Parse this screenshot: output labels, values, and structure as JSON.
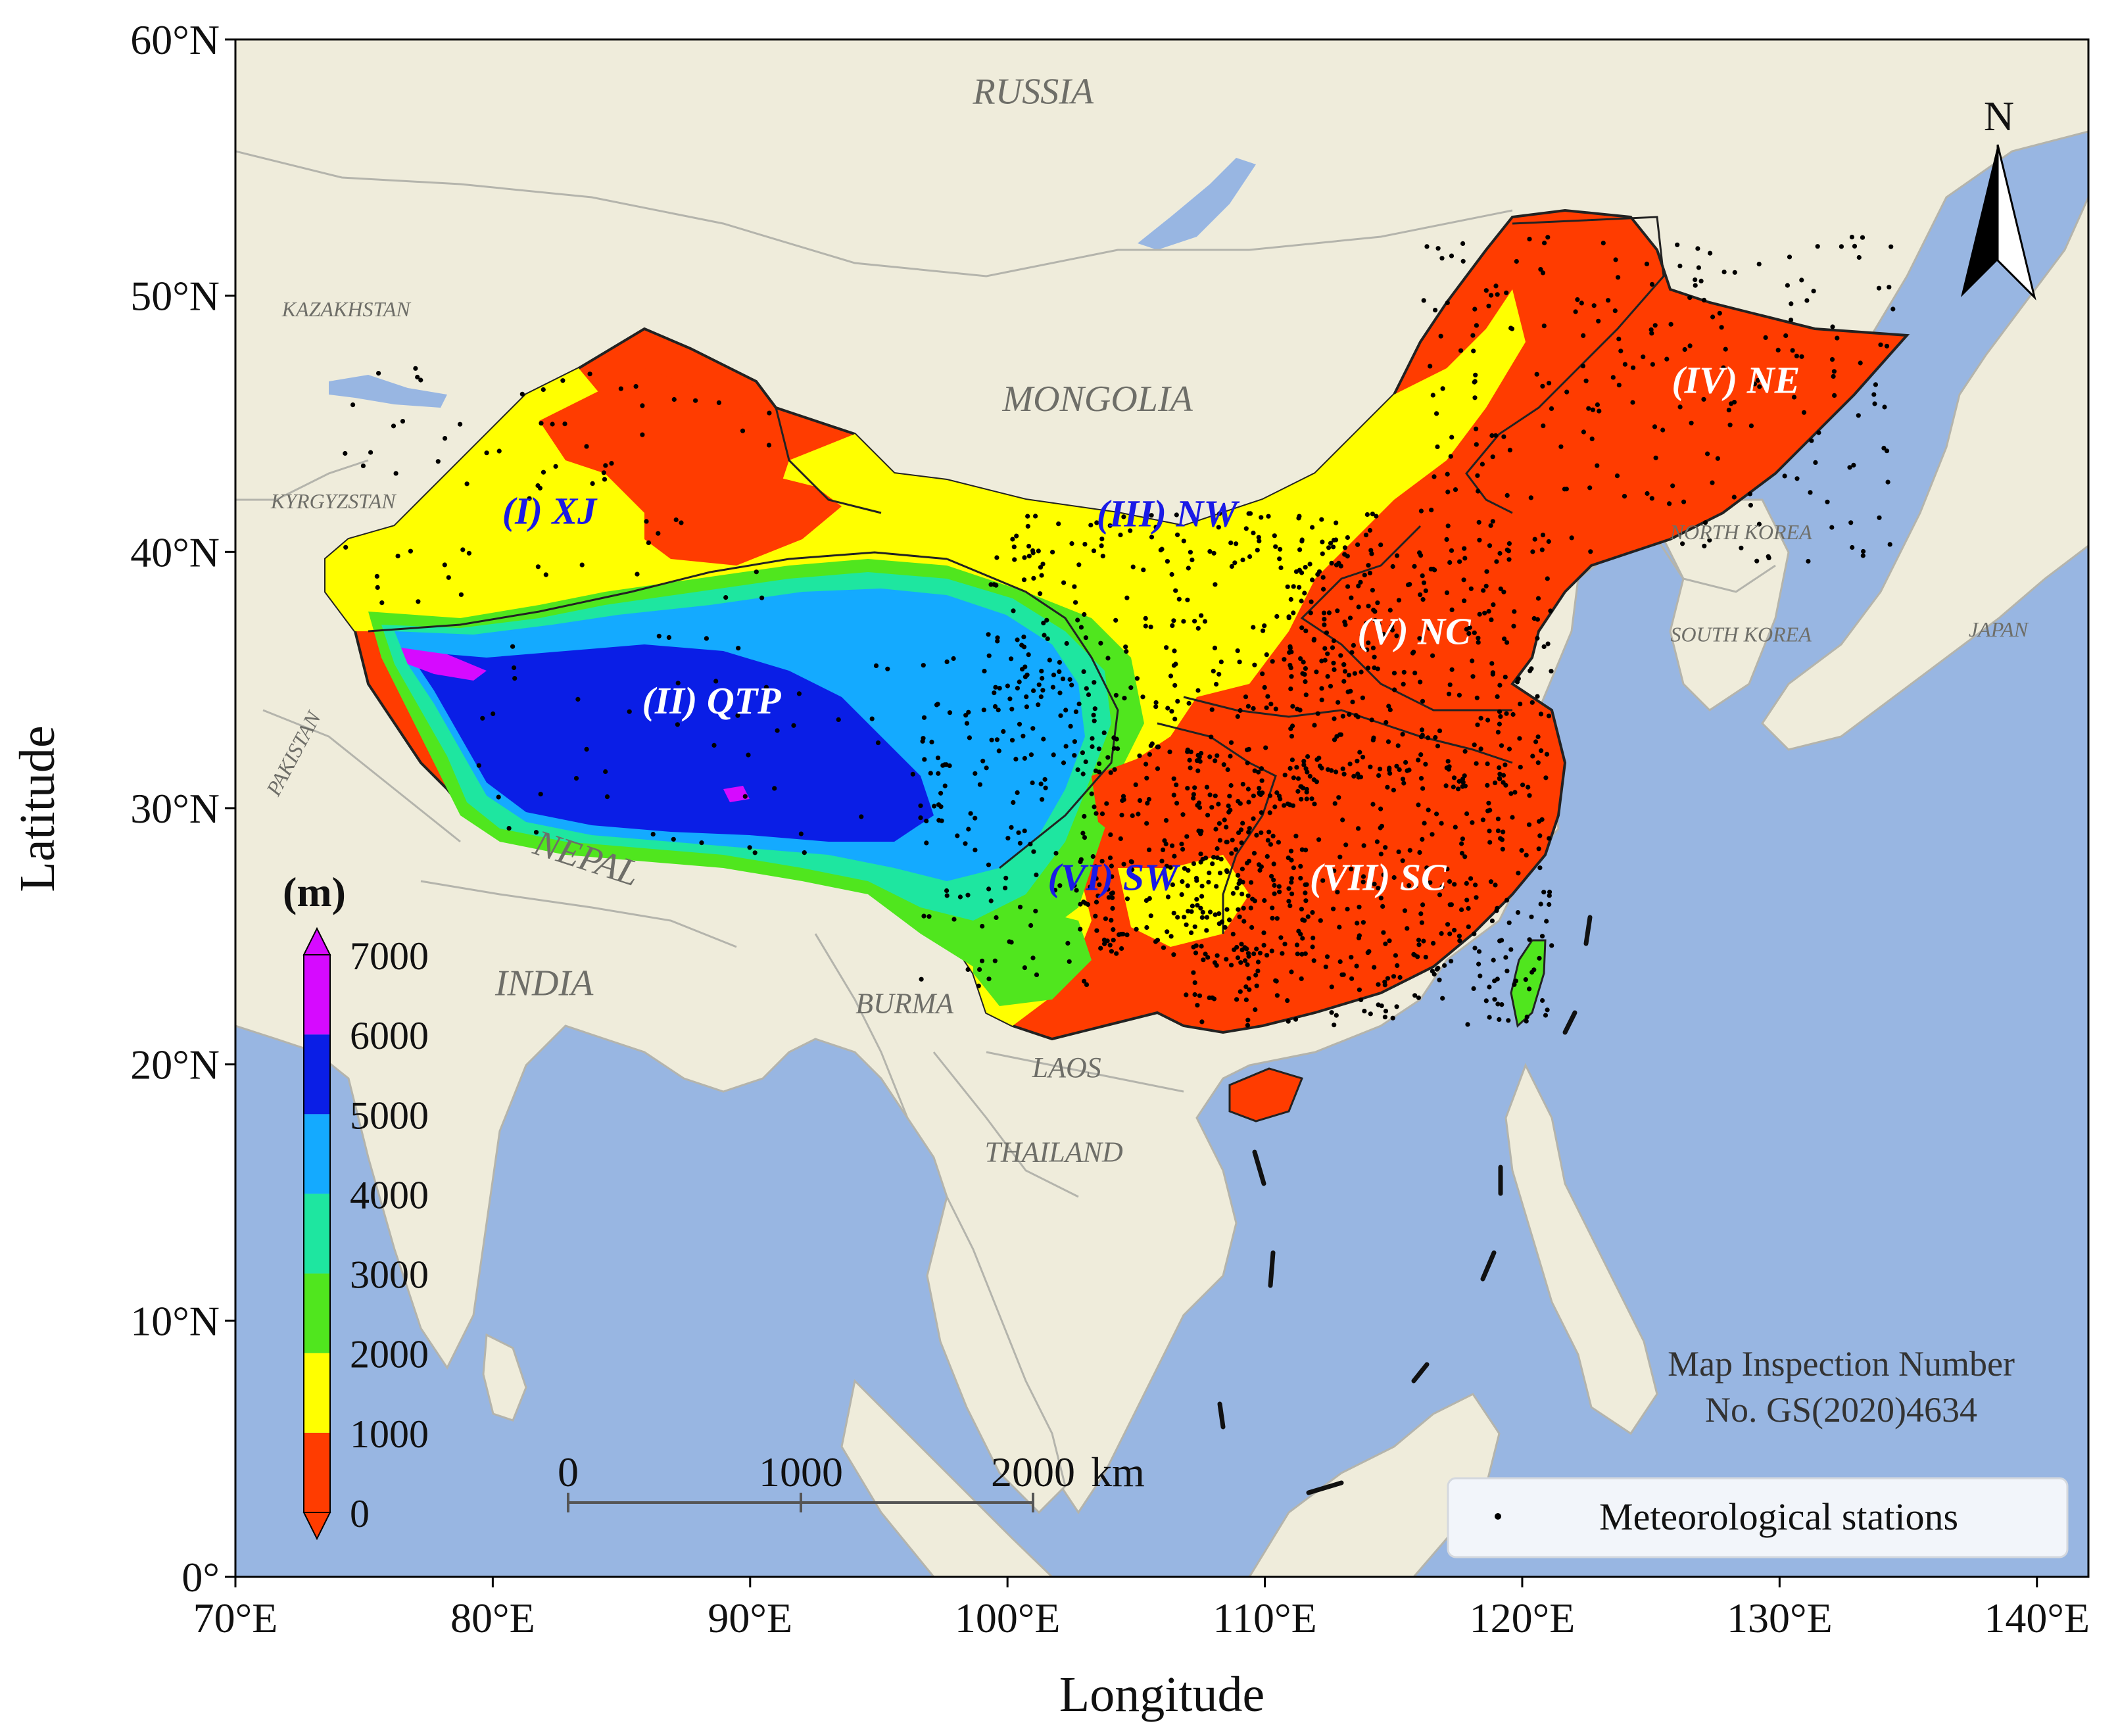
{
  "axes": {
    "xlabel": "Longitude",
    "ylabel": "Latitude",
    "xticks": [
      "70°E",
      "80°E",
      "90°E",
      "100°E",
      "110°E",
      "120°E",
      "130°E",
      "140°E"
    ],
    "yticks": [
      "0°",
      "10°N",
      "20°N",
      "30°N",
      "40°N",
      "50°N",
      "60°N"
    ],
    "xlim": [
      70,
      142
    ],
    "ylim": [
      0,
      60
    ]
  },
  "colors": {
    "ocean": "#98b6e2",
    "land": "#efecdb",
    "border": "#b4b4ac",
    "region_outline": "#222222",
    "label_blue": "#1a1ae6",
    "label_white": "#ffffff"
  },
  "countries": [
    {
      "name": "RUSSIA",
      "lon": 101,
      "lat": 57.5
    },
    {
      "name": "MONGOLIA",
      "lon": 103.5,
      "lat": 45.5
    },
    {
      "name": "KAZAKHSTAN",
      "lon": 74.3,
      "lat": 49.2
    },
    {
      "name": "KYRGYZSTAN",
      "lon": 73.8,
      "lat": 41.7
    },
    {
      "name": "PAKISTAN",
      "lon": 72.5,
      "lat": 32
    },
    {
      "name": "NEPAL",
      "lon": 83.5,
      "lat": 27.6
    },
    {
      "name": "INDIA",
      "lon": 82,
      "lat": 22.7
    },
    {
      "name": "BURMA",
      "lon": 96,
      "lat": 22
    },
    {
      "name": "LAOS",
      "lon": 102.3,
      "lat": 19.5
    },
    {
      "name": "THAILAND",
      "lon": 101.8,
      "lat": 16.2
    },
    {
      "name": "NORTH KOREA",
      "lon": 128.5,
      "lat": 40.5
    },
    {
      "name": "SOUTH KOREA",
      "lon": 128.5,
      "lat": 36.5
    },
    {
      "name": "JAPAN",
      "lon": 138.5,
      "lat": 36.7
    }
  ],
  "regions": [
    {
      "label": "(I) XJ",
      "lon": 82.2,
      "lat": 41.1,
      "color": "blue"
    },
    {
      "label": "(II) QTP",
      "lon": 88.5,
      "lat": 33.7,
      "color": "white"
    },
    {
      "label": "(III) NW",
      "lon": 106.2,
      "lat": 41,
      "color": "blue"
    },
    {
      "label": "(IV) NE",
      "lon": 128.3,
      "lat": 46.2,
      "color": "white"
    },
    {
      "label": "(V) NC",
      "lon": 115.8,
      "lat": 36.4,
      "color": "white"
    },
    {
      "label": "(VI) SW",
      "lon": 104.1,
      "lat": 26.8,
      "color": "blue"
    },
    {
      "label": "(VII) SC",
      "lon": 114.4,
      "lat": 26.8,
      "color": "white"
    }
  ],
  "colorbar": {
    "unit": "(m)",
    "levels": [
      0,
      1000,
      2000,
      3000,
      4000,
      5000,
      6000,
      7000
    ],
    "colors": [
      "#ff3c00",
      "#ffff00",
      "#50e61e",
      "#1ee6a0",
      "#14aaff",
      "#0a1ee6",
      "#d60aff"
    ],
    "extend_under": "#ff3c00",
    "extend_over": "#d60aff"
  },
  "scale_bar": {
    "ticks": [
      "0",
      "1000",
      "2000"
    ],
    "unit": "km"
  },
  "north_arrow": "N",
  "legend": {
    "label": "Meteorological stations",
    "position": "lower-right"
  },
  "inspection_note": [
    "Map Inspection Number",
    "No. GS(2020)4634"
  ]
}
